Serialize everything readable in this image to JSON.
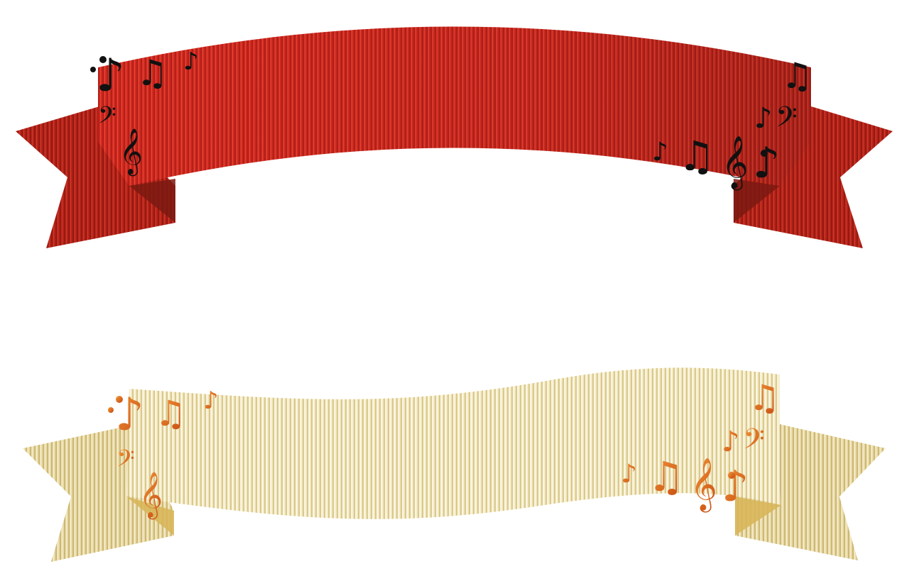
{
  "banners": [
    {
      "name": "red-music-ribbon",
      "colors": {
        "main": "#d42a1e",
        "dark": "#a81c13",
        "fold": "#6e1610",
        "note": "#111111"
      }
    },
    {
      "name": "cream-music-ribbon",
      "colors": {
        "main": "#f1e6bd",
        "dark": "#dccb8a",
        "fold": "#caa84a",
        "note": "#d9661c"
      }
    }
  ],
  "icons": {
    "notes": [
      "eighth-note-icon",
      "beamed-notes-icon",
      "bass-clef-icon",
      "treble-clef-icon"
    ]
  }
}
